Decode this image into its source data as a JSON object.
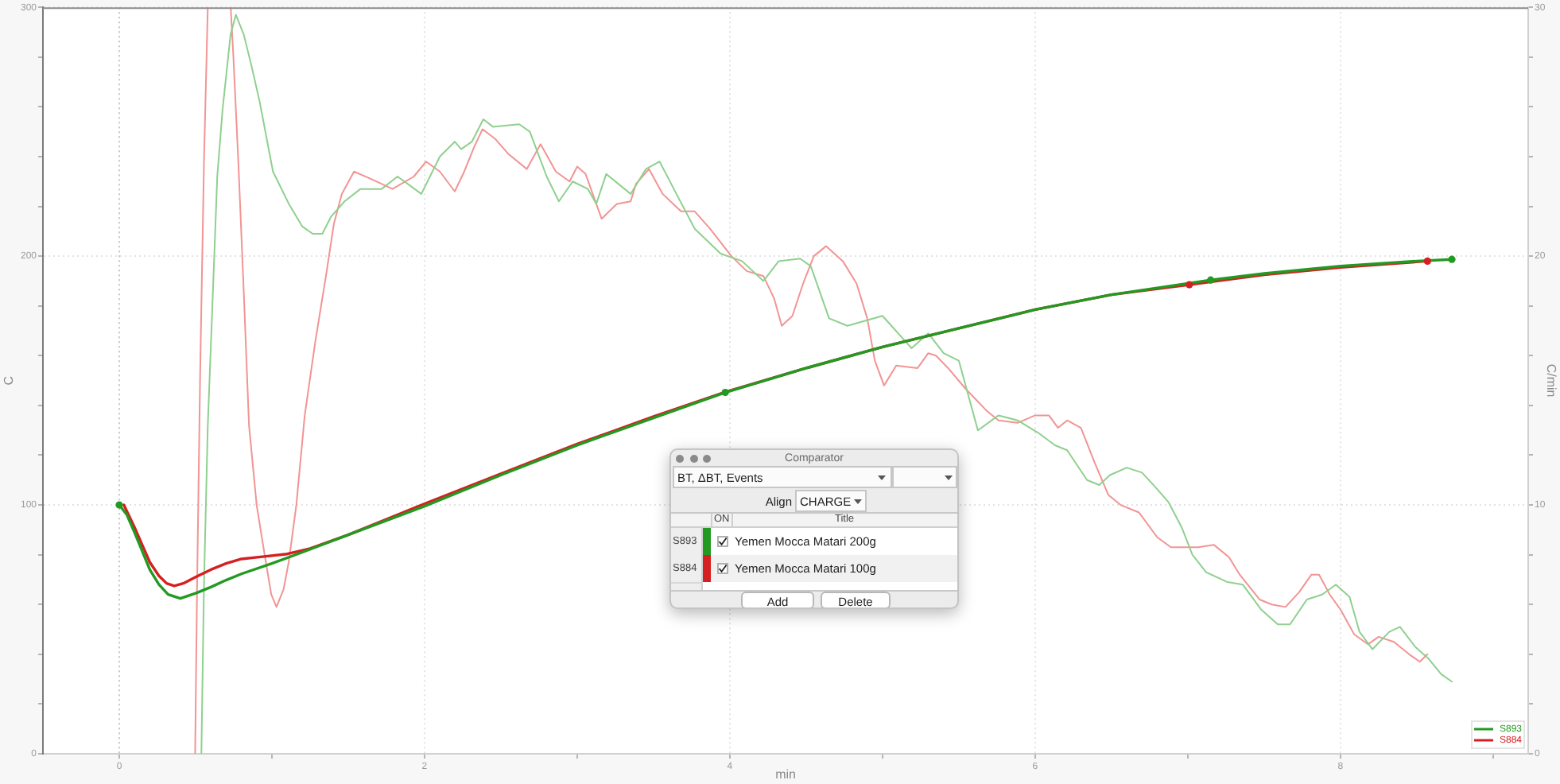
{
  "chart_data": {
    "type": "line",
    "xlabel": "min",
    "ylabel": "C",
    "y2label": "C/min",
    "xlim": [
      -0.5,
      9.23
    ],
    "xticks": [
      0,
      {
        "value": 1,
        "label": null
      },
      2,
      {
        "value": 3,
        "label": null
      },
      4,
      {
        "value": 5,
        "label": null
      },
      6,
      {
        "value": 7,
        "label": null
      },
      8,
      {
        "value": 9,
        "label": null
      }
    ],
    "ylim": [
      0,
      300
    ],
    "yticks": [
      0,
      {
        "value": 20,
        "label": null
      },
      {
        "value": 40,
        "label": null
      },
      {
        "value": 60,
        "label": null
      },
      {
        "value": 80,
        "label": null
      },
      100,
      {
        "value": 120,
        "label": null
      },
      {
        "value": 140,
        "label": null
      },
      {
        "value": 160,
        "label": null
      },
      {
        "value": 180,
        "label": null
      },
      200,
      {
        "value": 220,
        "label": null
      },
      {
        "value": 240,
        "label": null
      },
      {
        "value": 260,
        "label": null
      },
      {
        "value": 280,
        "label": null
      },
      300
    ],
    "y2lim": [
      0,
      30
    ],
    "y2ticks": [
      0,
      {
        "value": 2,
        "label": null
      },
      {
        "value": 4,
        "label": null
      },
      {
        "value": 6,
        "label": null
      },
      {
        "value": 8,
        "label": null
      },
      10,
      {
        "value": 12,
        "label": null
      },
      {
        "value": 14,
        "label": null
      },
      {
        "value": 16,
        "label": null
      },
      {
        "value": 18,
        "label": null
      },
      20,
      {
        "value": 22,
        "label": null
      },
      {
        "value": 24,
        "label": null
      },
      {
        "value": 26,
        "label": null
      },
      {
        "value": 28,
        "label": null
      },
      30
    ],
    "grid": true,
    "legend": "bottom right",
    "ref_lines": [
      {
        "axis": "x",
        "value": 0,
        "color": "#c8c8c8",
        "line_style": "dotted"
      }
    ],
    "series": [
      {
        "name": "S893",
        "color": "#229a22",
        "x": [
          0,
          0.05,
          0.1,
          0.15,
          0.2,
          0.26,
          0.32,
          0.4,
          0.5,
          0.6,
          0.7,
          0.8,
          1.0,
          1.2,
          1.5,
          2.0,
          2.5,
          3.0,
          3.5,
          3.97,
          4.5,
          5.0,
          5.5,
          6.0,
          6.5,
          7.15,
          7.5,
          8.0,
          8.5,
          8.73
        ],
        "values": [
          100,
          96,
          89,
          81.5,
          74,
          68,
          64,
          62.4,
          64.5,
          67,
          69.8,
          72.3,
          76.5,
          81,
          88,
          99.5,
          112,
          124,
          135,
          145.2,
          155,
          163.5,
          171,
          178.5,
          184.5,
          190.4,
          193,
          196,
          198,
          198.7
        ]
      },
      {
        "name": "S884",
        "color": "#d42020",
        "x": [
          0.03,
          0.1,
          0.15,
          0.2,
          0.26,
          0.31,
          0.36,
          0.42,
          0.5,
          0.6,
          0.7,
          0.8,
          0.95,
          1.1,
          1.25,
          1.5,
          2.0,
          2.5,
          3.0,
          3.5,
          3.95,
          4.5,
          5.0,
          5.5,
          6.0,
          6.5,
          7.01,
          7.5,
          8.0,
          8.57
        ],
        "values": [
          100,
          91,
          84,
          77,
          71.5,
          68.5,
          67.5,
          68.5,
          71,
          74,
          76.5,
          78.3,
          79.3,
          80.3,
          82.5,
          88,
          100.5,
          112.5,
          124.5,
          135.5,
          145,
          155,
          163.5,
          171,
          178.5,
          184.5,
          188.5,
          192.5,
          195.5,
          198
        ]
      },
      {
        "color": "#8fd08f",
        "axis": "y2",
        "x": [
          0.538,
          0.555,
          0.58,
          0.607,
          0.642,
          0.677,
          0.729,
          0.764,
          0.816,
          0.868,
          0.92,
          1.007,
          1.111,
          1.198,
          1.267,
          1.33,
          1.389,
          1.476,
          1.58,
          1.719,
          1.823,
          1.979,
          2.1,
          2.198,
          2.24,
          2.31,
          2.385,
          2.448,
          2.62,
          2.69,
          2.8,
          2.88,
          2.97,
          3.07,
          3.125,
          3.19,
          3.35,
          3.45,
          3.54,
          3.65,
          3.77,
          3.94,
          4.08,
          4.22,
          4.32,
          4.46,
          4.53,
          4.65,
          4.77,
          5.0,
          5.19,
          5.3,
          5.4,
          5.5,
          5.625,
          5.76,
          5.885,
          6.02,
          6.13,
          6.21,
          6.34,
          6.42,
          6.49,
          6.6,
          6.7,
          6.79,
          6.875,
          6.96,
          7.03,
          7.12,
          7.26,
          7.36,
          7.48,
          7.59,
          7.67,
          7.78,
          7.88,
          7.97,
          8.06,
          8.125,
          8.21,
          8.32,
          8.39,
          8.49,
          8.58,
          8.66,
          8.73
        ],
        "values": [
          0,
          6.8,
          13.2,
          17.5,
          23.2,
          25.9,
          28.9,
          29.7,
          28.9,
          27.6,
          26.2,
          23.4,
          22.1,
          21.2,
          20.9,
          20.9,
          21.6,
          22.2,
          22.7,
          22.7,
          23.2,
          22.5,
          24.0,
          24.6,
          24.3,
          24.6,
          25.5,
          25.2,
          25.3,
          25.0,
          23.2,
          22.2,
          23.0,
          22.7,
          22.1,
          23.3,
          22.5,
          23.5,
          23.8,
          22.5,
          21.1,
          20.1,
          19.8,
          19.0,
          19.8,
          19.9,
          19.6,
          17.5,
          17.2,
          17.6,
          16.3,
          16.9,
          16.1,
          15.8,
          13.0,
          13.6,
          13.4,
          12.9,
          12.4,
          12.2,
          11.0,
          10.8,
          11.2,
          11.5,
          11.3,
          10.7,
          10.1,
          9.1,
          8.0,
          7.3,
          6.9,
          6.8,
          5.8,
          5.2,
          5.2,
          6.2,
          6.4,
          6.8,
          6.3,
          4.9,
          4.2,
          4.9,
          5.1,
          4.3,
          3.8,
          3.2,
          2.9
        ]
      },
      {
        "color": "#f29494",
        "axis": "y2",
        "x": [
          0.497,
          0.51,
          0.53,
          0.555,
          0.58,
          0.65,
          0.73,
          0.747,
          0.78,
          0.816,
          0.85,
          0.9,
          0.955,
          0.996,
          1.03,
          1.076,
          1.11,
          1.16,
          1.215,
          1.285,
          1.354,
          1.406,
          1.458,
          1.538,
          1.65,
          1.79,
          1.93,
          2.01,
          2.1,
          2.198,
          2.26,
          2.326,
          2.38,
          2.465,
          2.55,
          2.67,
          2.76,
          2.86,
          2.95,
          3.0,
          3.055,
          3.16,
          3.26,
          3.35,
          3.385,
          3.47,
          3.56,
          3.68,
          3.77,
          3.87,
          4.01,
          4.11,
          4.22,
          4.29,
          4.34,
          4.41,
          4.48,
          4.55,
          4.63,
          4.74,
          4.83,
          4.9,
          4.95,
          5.01,
          5.09,
          5.23,
          5.3,
          5.35,
          5.43,
          5.54,
          5.68,
          5.76,
          5.885,
          6.0,
          6.09,
          6.15,
          6.21,
          6.3,
          6.39,
          6.48,
          6.56,
          6.68,
          6.8,
          6.89,
          7.07,
          7.17,
          7.27,
          7.34,
          7.47,
          7.55,
          7.64,
          7.73,
          7.81,
          7.86,
          7.93,
          8.0,
          8.09,
          8.18,
          8.25,
          8.35,
          8.45,
          8.52,
          8.57
        ],
        "values": [
          0,
          6.8,
          15.3,
          23.8,
          30,
          null,
          30,
          28.1,
          23.8,
          18.5,
          13.2,
          10.0,
          7.9,
          6.4,
          5.9,
          6.6,
          7.7,
          10.0,
          13.6,
          16.6,
          19.2,
          21.3,
          22.5,
          23.4,
          23.1,
          22.7,
          23.2,
          23.8,
          23.4,
          22.6,
          23.4,
          24.4,
          25.1,
          24.7,
          24.1,
          23.5,
          24.5,
          23.4,
          23.0,
          23.6,
          23.3,
          21.5,
          22.1,
          22.2,
          22.9,
          23.5,
          22.5,
          21.8,
          21.8,
          21.1,
          20.0,
          19.4,
          19.2,
          18.3,
          17.2,
          17.6,
          18.9,
          20.0,
          20.4,
          19.8,
          18.9,
          17.5,
          15.8,
          14.8,
          15.6,
          15.5,
          16.1,
          16.0,
          15.5,
          14.7,
          13.8,
          13.4,
          13.3,
          13.6,
          13.6,
          13.1,
          13.4,
          13.1,
          11.7,
          10.4,
          10.0,
          9.7,
          8.7,
          8.3,
          8.3,
          8.4,
          7.9,
          7.2,
          6.2,
          6.0,
          5.9,
          6.5,
          7.2,
          7.2,
          6.4,
          5.8,
          4.8,
          4.4,
          4.7,
          4.5,
          4.0,
          3.7,
          4.0
        ]
      },
      {
        "type": "scatter",
        "color": "#229a22",
        "marker": "circle",
        "x": [
          0,
          3.97,
          7.15,
          8.73
        ],
        "values": [
          100,
          145.2,
          190.4,
          198.7
        ]
      },
      {
        "type": "scatter",
        "color": "#d42020",
        "marker": "circle",
        "x": [
          7.01,
          8.57
        ],
        "values": [
          188.5,
          198
        ]
      }
    ],
    "annotations": [
      "Comparator",
      "BT, ΔBT, Events",
      "Align",
      "CHARGE",
      "ON",
      "Title",
      "Yemen Mocca Matari 200g",
      "Yemen Mocca Matari 100g",
      "Add",
      "Delete"
    ]
  }
}
